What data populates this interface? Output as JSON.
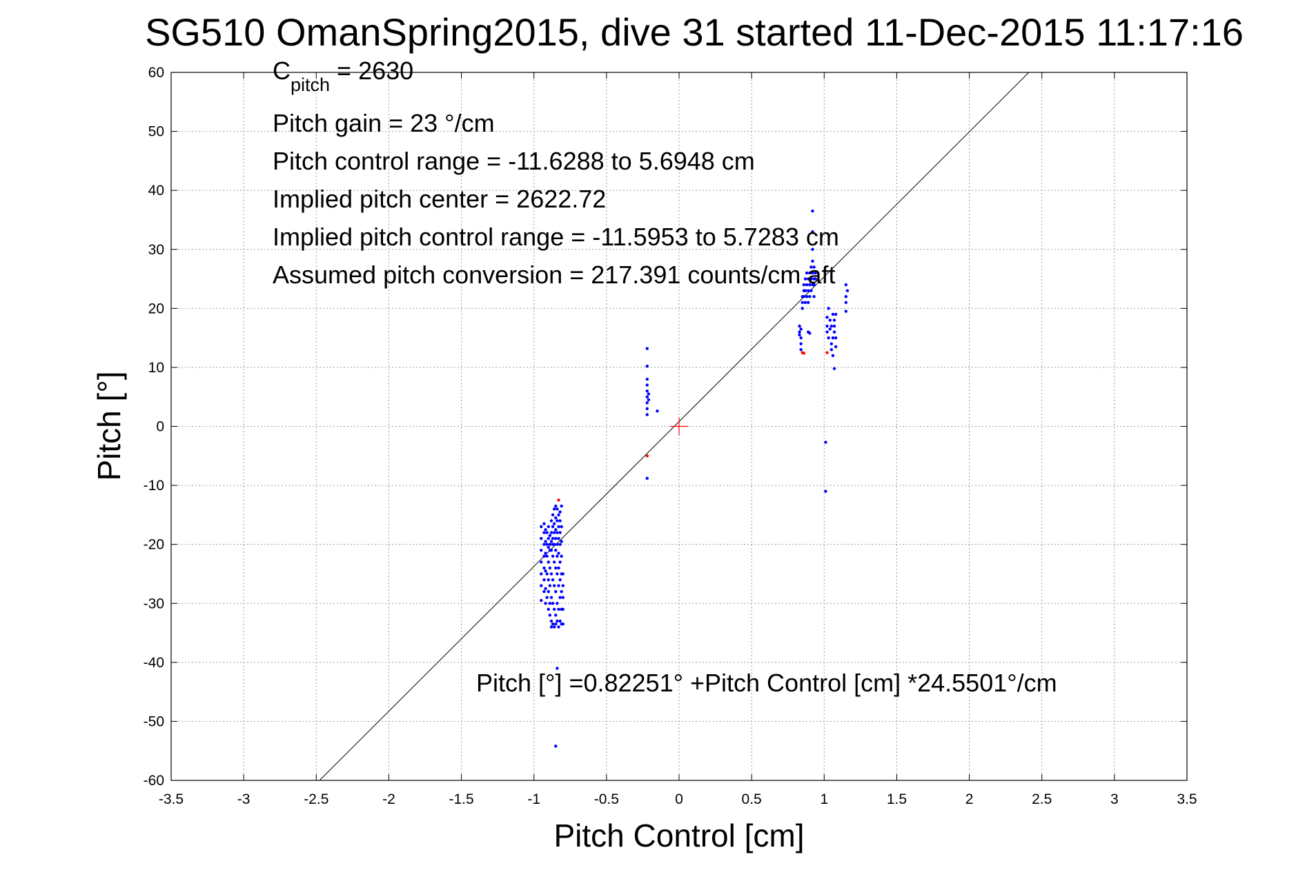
{
  "chart_data": {
    "type": "scatter",
    "title": "SG510 OmanSpring2015, dive 31 started 11-Dec-2015 11:17:16",
    "xlabel": "Pitch Control [cm]",
    "ylabel": "Pitch [°]",
    "xlim": [
      -3.5,
      3.5
    ],
    "ylim": [
      -60,
      60
    ],
    "xticks": [
      -3.5,
      -3,
      -2.5,
      -2,
      -1.5,
      -1,
      -0.5,
      0,
      0.5,
      1,
      1.5,
      2,
      2.5,
      3,
      3.5
    ],
    "yticks": [
      -60,
      -50,
      -40,
      -30,
      -20,
      -10,
      0,
      10,
      20,
      30,
      40,
      50,
      60
    ],
    "xtick_labels": [
      "-3.5",
      "-3",
      "-2.5",
      "-2",
      "-1.5",
      "-1",
      "-0.5",
      "0",
      "0.5",
      "1",
      "1.5",
      "2",
      "2.5",
      "3",
      "3.5"
    ],
    "ytick_labels": [
      "-60",
      "-50",
      "-40",
      "-30",
      "-20",
      "-10",
      "0",
      "10",
      "20",
      "30",
      "40",
      "50",
      "60"
    ],
    "grid": true,
    "colors": {
      "blue": "#0000ff",
      "red": "#ff0000",
      "fit": "#000000"
    },
    "annotations": {
      "c_pitch_main": "C",
      "c_pitch_sub": "pitch",
      "c_pitch_value": " = 2630",
      "pitch_gain": "Pitch gain = 23 °/cm",
      "pitch_control_range": "Pitch control range = -11.6288 to 5.6948 cm",
      "implied_center": "Implied pitch center = 2622.72",
      "implied_range": "Implied pitch control range = -11.5953 to 5.7283 cm",
      "assumed_conversion": "Assumed pitch conversion = 217.391 counts/cm aft",
      "fit_equation": "Pitch [°] =0.82251° +Pitch Control [cm] *24.5501°/cm"
    },
    "fit_line": {
      "intercept": 0.82251,
      "slope": 24.5501
    },
    "center_marker": {
      "x": 0,
      "y": 0
    },
    "series": [
      {
        "color": "blue",
        "points": [
          [
            -0.95,
            -17
          ],
          [
            -0.95,
            -19
          ],
          [
            -0.95,
            -21
          ],
          [
            -0.95,
            -23
          ],
          [
            -0.95,
            -25
          ],
          [
            -0.95,
            -27
          ],
          [
            -0.95,
            -29.5
          ],
          [
            -0.93,
            -16.5
          ],
          [
            -0.93,
            -18
          ],
          [
            -0.93,
            -20
          ],
          [
            -0.93,
            -22
          ],
          [
            -0.93,
            -24
          ],
          [
            -0.93,
            -26
          ],
          [
            -0.93,
            -28
          ],
          [
            -0.92,
            -17.5
          ],
          [
            -0.92,
            -19.5
          ],
          [
            -0.92,
            -21.5
          ],
          [
            -0.92,
            -24.5
          ],
          [
            -0.92,
            -27.5
          ],
          [
            -0.92,
            -30
          ],
          [
            -0.91,
            -18
          ],
          [
            -0.91,
            -20
          ],
          [
            -0.91,
            -22
          ],
          [
            -0.91,
            -25
          ],
          [
            -0.91,
            -29
          ],
          [
            -0.9,
            -17
          ],
          [
            -0.9,
            -19
          ],
          [
            -0.9,
            -20.5
          ],
          [
            -0.9,
            -23
          ],
          [
            -0.9,
            -26
          ],
          [
            -0.9,
            -28
          ],
          [
            -0.9,
            -31
          ],
          [
            -0.89,
            -18.5
          ],
          [
            -0.89,
            -20
          ],
          [
            -0.89,
            -21
          ],
          [
            -0.89,
            -24
          ],
          [
            -0.89,
            -27
          ],
          [
            -0.89,
            -30
          ],
          [
            -0.89,
            -32
          ],
          [
            -0.88,
            -16
          ],
          [
            -0.88,
            -18
          ],
          [
            -0.88,
            -19.5
          ],
          [
            -0.88,
            -21
          ],
          [
            -0.88,
            -25
          ],
          [
            -0.88,
            -29
          ],
          [
            -0.88,
            -33
          ],
          [
            -0.88,
            -34
          ],
          [
            -0.87,
            -15
          ],
          [
            -0.87,
            -17
          ],
          [
            -0.87,
            -19
          ],
          [
            -0.87,
            -20
          ],
          [
            -0.87,
            -22
          ],
          [
            -0.87,
            -26
          ],
          [
            -0.87,
            -30
          ],
          [
            -0.87,
            -33.5
          ],
          [
            -0.86,
            -14
          ],
          [
            -0.86,
            -16.5
          ],
          [
            -0.86,
            -18
          ],
          [
            -0.86,
            -20
          ],
          [
            -0.86,
            -23
          ],
          [
            -0.86,
            -27
          ],
          [
            -0.86,
            -31
          ],
          [
            -0.86,
            -34
          ],
          [
            -0.85,
            -13.5
          ],
          [
            -0.85,
            -15.5
          ],
          [
            -0.85,
            -17.5
          ],
          [
            -0.85,
            -19
          ],
          [
            -0.85,
            -21
          ],
          [
            -0.85,
            -24
          ],
          [
            -0.85,
            -28
          ],
          [
            -0.85,
            -32
          ],
          [
            -0.85,
            -33.5
          ],
          [
            -0.84,
            -14
          ],
          [
            -0.84,
            -16
          ],
          [
            -0.84,
            -18
          ],
          [
            -0.84,
            -20
          ],
          [
            -0.84,
            -22
          ],
          [
            -0.84,
            -25
          ],
          [
            -0.84,
            -30
          ],
          [
            -0.84,
            -33
          ],
          [
            -0.83,
            -15
          ],
          [
            -0.83,
            -17
          ],
          [
            -0.83,
            -19
          ],
          [
            -0.83,
            -21.5
          ],
          [
            -0.83,
            -24
          ],
          [
            -0.83,
            -27
          ],
          [
            -0.83,
            -31
          ],
          [
            -0.83,
            -34
          ],
          [
            -0.82,
            -14.5
          ],
          [
            -0.82,
            -16
          ],
          [
            -0.82,
            -18
          ],
          [
            -0.82,
            -20
          ],
          [
            -0.82,
            -23
          ],
          [
            -0.82,
            -26
          ],
          [
            -0.82,
            -29
          ],
          [
            -0.82,
            -33
          ],
          [
            -0.81,
            -13.5
          ],
          [
            -0.81,
            -17
          ],
          [
            -0.81,
            -19.5
          ],
          [
            -0.81,
            -22
          ],
          [
            -0.81,
            -25
          ],
          [
            -0.81,
            -28
          ],
          [
            -0.81,
            -31
          ],
          [
            -0.81,
            -33.5
          ],
          [
            -0.8,
            -25
          ],
          [
            -0.8,
            -27
          ],
          [
            -0.8,
            -29
          ],
          [
            -0.8,
            -31
          ],
          [
            -0.8,
            -33.5
          ],
          [
            -0.84,
            -41
          ],
          [
            -0.85,
            -54.2
          ],
          [
            -0.22,
            13.2
          ],
          [
            -0.22,
            10.2
          ],
          [
            -0.22,
            8
          ],
          [
            -0.22,
            7
          ],
          [
            -0.22,
            6
          ],
          [
            -0.22,
            5
          ],
          [
            -0.22,
            4
          ],
          [
            -0.22,
            3
          ],
          [
            -0.22,
            2
          ],
          [
            -0.21,
            5.5
          ],
          [
            -0.21,
            4.5
          ],
          [
            -0.15,
            2.6
          ],
          [
            -0.22,
            -8.8
          ],
          [
            0.83,
            17
          ],
          [
            0.83,
            16
          ],
          [
            0.84,
            15
          ],
          [
            0.84,
            14
          ],
          [
            0.84,
            13
          ],
          [
            0.83,
            15.5
          ],
          [
            0.84,
            16.5
          ],
          [
            0.85,
            20
          ],
          [
            0.85,
            21
          ],
          [
            0.85,
            22
          ],
          [
            0.86,
            23
          ],
          [
            0.86,
            24
          ],
          [
            0.86,
            22
          ],
          [
            0.87,
            21
          ],
          [
            0.87,
            23
          ],
          [
            0.87,
            25
          ],
          [
            0.88,
            24
          ],
          [
            0.88,
            22
          ],
          [
            0.88,
            26
          ],
          [
            0.89,
            23
          ],
          [
            0.89,
            25
          ],
          [
            0.89,
            21
          ],
          [
            0.9,
            24
          ],
          [
            0.9,
            22
          ],
          [
            0.9,
            26
          ],
          [
            0.91,
            25
          ],
          [
            0.91,
            23
          ],
          [
            0.91,
            27
          ],
          [
            0.92,
            24
          ],
          [
            0.92,
            26
          ],
          [
            0.92,
            28
          ],
          [
            0.92,
            30
          ],
          [
            0.92,
            33
          ],
          [
            0.92,
            36.5
          ],
          [
            0.93,
            25
          ],
          [
            0.93,
            27
          ],
          [
            0.93,
            24
          ],
          [
            0.93,
            22
          ],
          [
            0.94,
            26
          ],
          [
            0.94,
            25
          ],
          [
            0.89,
            16
          ],
          [
            0.9,
            15.8
          ],
          [
            1.02,
            16
          ],
          [
            1.02,
            17
          ],
          [
            1.02,
            18.5
          ],
          [
            1.03,
            20
          ],
          [
            1.03,
            15
          ],
          [
            1.04,
            16.5
          ],
          [
            1.04,
            18
          ],
          [
            1.05,
            14
          ],
          [
            1.05,
            13
          ],
          [
            1.05,
            17
          ],
          [
            1.06,
            19
          ],
          [
            1.06,
            15
          ],
          [
            1.06,
            12
          ],
          [
            1.07,
            17
          ],
          [
            1.07,
            18
          ],
          [
            1.07,
            16
          ],
          [
            1.07,
            9.8
          ],
          [
            1.08,
            19
          ],
          [
            1.08,
            15
          ],
          [
            1.08,
            13.5
          ],
          [
            1.15,
            24
          ],
          [
            1.15,
            22
          ],
          [
            1.15,
            21
          ],
          [
            1.15,
            19.5
          ],
          [
            1.16,
            23
          ],
          [
            1.01,
            -2.7
          ],
          [
            1.01,
            -11
          ]
        ]
      },
      {
        "color": "red",
        "points": [
          [
            -0.83,
            -12.5
          ],
          [
            -0.22,
            -5
          ],
          [
            0.85,
            12.5
          ],
          [
            0.86,
            12.4
          ],
          [
            1.02,
            12.5
          ]
        ]
      }
    ]
  }
}
